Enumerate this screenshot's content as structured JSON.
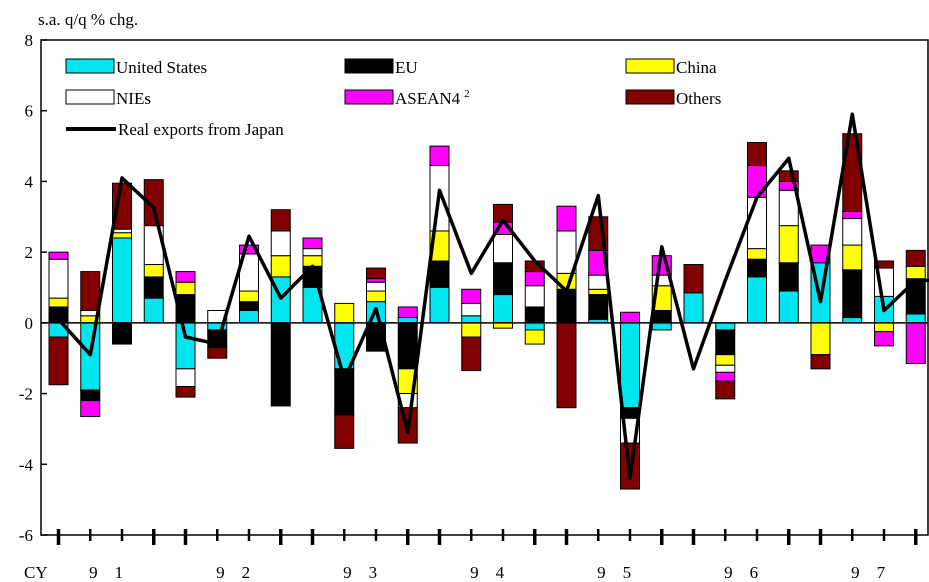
{
  "chart_data": {
    "type": "bar",
    "unit_label": "s.a. q/q % chg.",
    "ylim": [
      -6,
      8
    ],
    "yticks": [
      -6,
      -4,
      -2,
      0,
      2,
      4,
      6,
      8
    ],
    "x_prefix": "CY",
    "year_labels": [
      "9 1",
      "9 2",
      "9 3",
      "9 4",
      "9 5",
      "9 6",
      "9 7"
    ],
    "categories": [
      "1990Q3",
      "1990Q4",
      "1991Q1",
      "1991Q2",
      "1991Q3",
      "1991Q4",
      "1992Q1",
      "1992Q2",
      "1992Q3",
      "1992Q4",
      "1993Q1",
      "1993Q2",
      "1993Q3",
      "1993Q4",
      "1994Q1",
      "1994Q2",
      "1994Q3",
      "1994Q4",
      "1995Q1",
      "1995Q2",
      "1995Q3",
      "1995Q4",
      "1996Q1",
      "1996Q2",
      "1996Q3",
      "1996Q4",
      "1997Q1",
      "1997Q2",
      "1997Q3"
    ],
    "series": [
      {
        "name": "United States",
        "color": "#00e5ee",
        "values": [
          -0.4,
          -1.9,
          2.4,
          0.7,
          -1.3,
          -0.2,
          0.35,
          1.3,
          1.0,
          -1.3,
          0.6,
          0.15,
          1.0,
          0.2,
          0.8,
          -0.2,
          0.0,
          0.1,
          -2.4,
          -0.2,
          0.85,
          -0.2,
          1.3,
          0.9,
          1.7,
          0.15,
          0.75,
          0.25,
          1.0
        ]
      },
      {
        "name": "EU",
        "color": "#000000",
        "values": [
          0.45,
          -0.3,
          -0.6,
          0.6,
          0.8,
          -0.5,
          0.25,
          -2.35,
          0.6,
          -1.3,
          -0.8,
          -1.3,
          0.75,
          0.0,
          0.9,
          0.45,
          0.95,
          0.7,
          -0.3,
          0.35,
          0.0,
          -0.7,
          0.5,
          0.8,
          0.0,
          1.35,
          0.0,
          1.0,
          -0.2
        ]
      },
      {
        "name": "China",
        "color": "#ffff00",
        "values": [
          0.25,
          0.2,
          0.15,
          0.35,
          0.35,
          0.0,
          0.3,
          0.6,
          0.3,
          0.55,
          0.3,
          -0.7,
          0.85,
          -0.4,
          -0.15,
          -0.4,
          0.45,
          0.15,
          0.0,
          0.7,
          0.0,
          -0.3,
          0.3,
          1.05,
          -0.9,
          0.7,
          -0.25,
          0.35,
          0.0
        ]
      },
      {
        "name": "NIEs",
        "color": "#ffffff",
        "values": [
          1.1,
          0.15,
          0.1,
          1.1,
          -0.5,
          0.35,
          1.05,
          0.7,
          0.2,
          0.0,
          0.25,
          -0.4,
          1.85,
          0.35,
          0.8,
          0.6,
          1.2,
          0.4,
          -0.7,
          0.3,
          0.0,
          -0.2,
          1.45,
          1.0,
          0.0,
          0.75,
          0.8,
          0.0,
          -0.2
        ]
      },
      {
        "name": "ASEAN4",
        "legend_suffix": "2",
        "color": "#ff00ff",
        "values": [
          0.2,
          -0.45,
          0.0,
          0.0,
          0.3,
          0.0,
          0.25,
          0.0,
          0.3,
          0.0,
          0.1,
          0.3,
          0.55,
          0.4,
          0.35,
          0.4,
          0.7,
          0.7,
          0.3,
          0.55,
          0.0,
          -0.25,
          0.9,
          0.25,
          0.5,
          0.2,
          -0.4,
          -1.15,
          -0.2
        ]
      },
      {
        "name": "Others",
        "color": "#800000",
        "values": [
          -1.35,
          1.1,
          1.3,
          1.3,
          -0.3,
          -0.3,
          0.0,
          0.6,
          0.0,
          -0.95,
          0.3,
          -1.0,
          0.0,
          -0.95,
          0.5,
          0.3,
          -2.4,
          0.95,
          -1.3,
          0.0,
          0.8,
          -0.5,
          0.65,
          0.3,
          -0.4,
          2.2,
          0.2,
          0.45,
          0.0
        ]
      },
      {
        "name": "Real exports from Japan",
        "color": "#000000",
        "line": true,
        "values": [
          0.1,
          -0.9,
          4.1,
          3.25,
          -0.4,
          -0.6,
          2.45,
          0.7,
          1.6,
          -1.6,
          0.4,
          -3.1,
          3.75,
          1.4,
          2.9,
          1.75,
          0.9,
          3.6,
          -4.4,
          2.15,
          -1.3,
          1.2,
          3.55,
          4.65,
          0.6,
          5.9,
          0.35,
          1.2,
          1.2
        ]
      }
    ]
  }
}
